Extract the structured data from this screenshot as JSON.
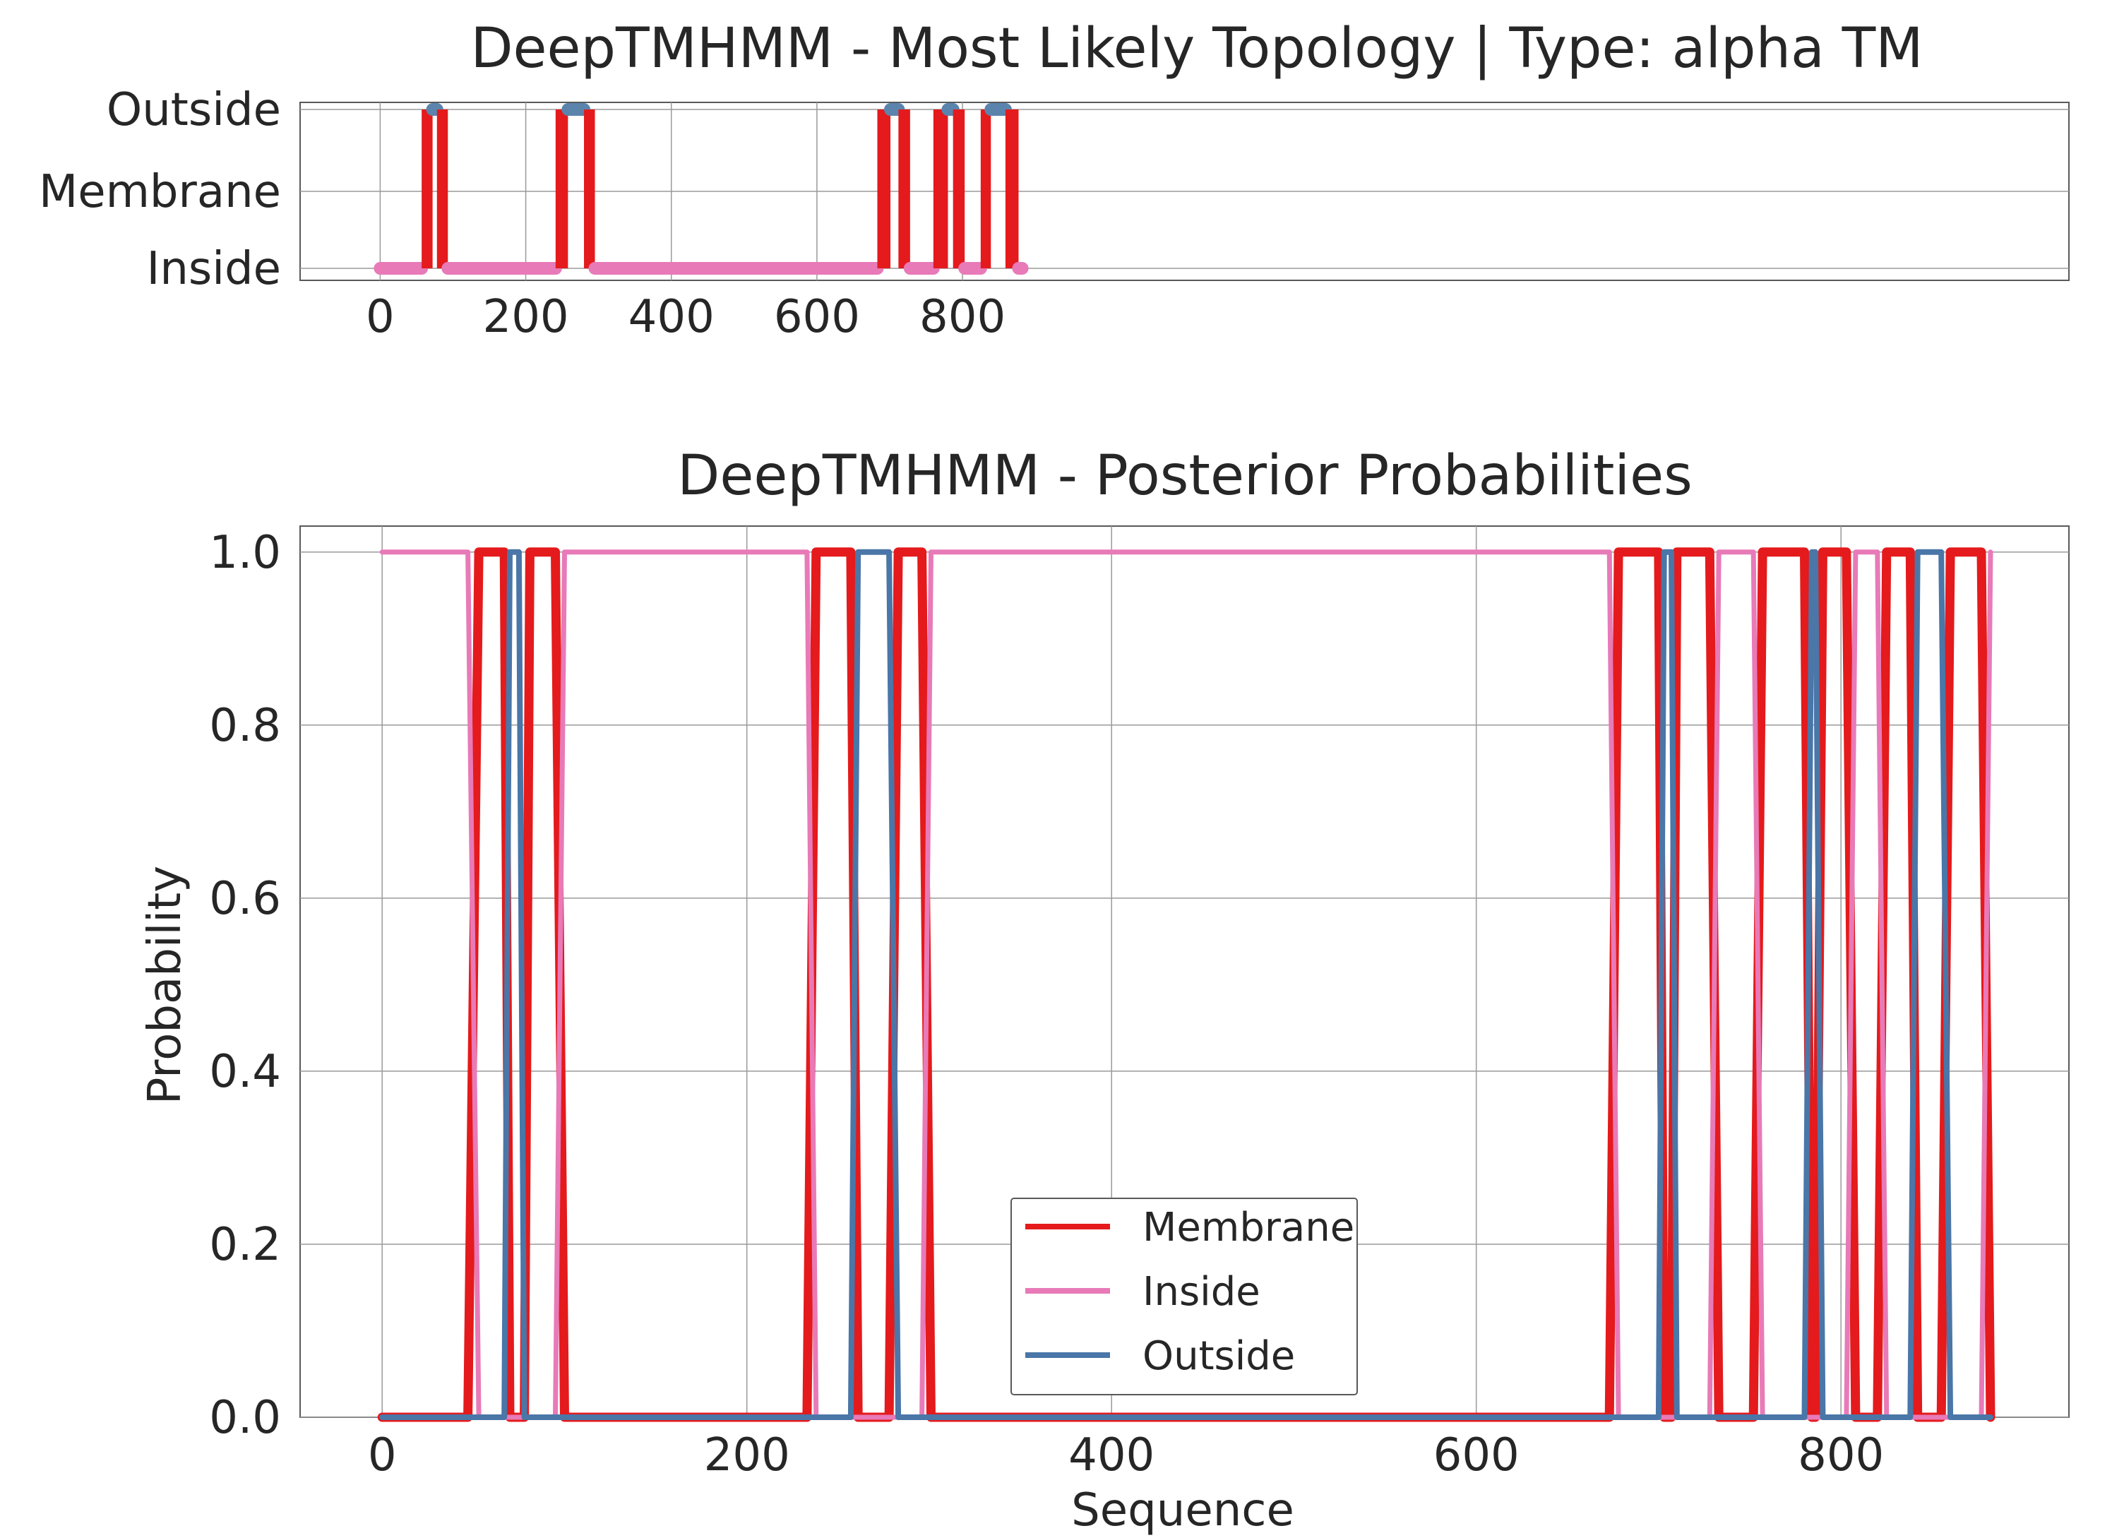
{
  "chart_data": [
    {
      "type": "line",
      "title": "DeepTMHMM - Most Likely Topology | Type: alpha TM",
      "xlim": [
        -110,
        2320
      ],
      "x_ticks": [
        0,
        200,
        400,
        600,
        800
      ],
      "y_tick_labels": [
        "Inside",
        "Membrane",
        "Outside"
      ],
      "grid": true,
      "colors": {
        "Membrane": "#e41a1c",
        "Inside": "#e87ab8",
        "Outside": "#5b84ad"
      },
      "segments": [
        {
          "state": "Inside",
          "start": 0,
          "end": 57
        },
        {
          "state": "Membrane",
          "start": 57,
          "end": 72
        },
        {
          "state": "Outside",
          "start": 72,
          "end": 78
        },
        {
          "state": "Membrane",
          "start": 78,
          "end": 93
        },
        {
          "state": "Inside",
          "start": 93,
          "end": 241
        },
        {
          "state": "Membrane",
          "start": 241,
          "end": 258
        },
        {
          "state": "Outside",
          "start": 258,
          "end": 280
        },
        {
          "state": "Membrane",
          "start": 280,
          "end": 295
        },
        {
          "state": "Inside",
          "start": 295,
          "end": 683
        },
        {
          "state": "Membrane",
          "start": 683,
          "end": 701
        },
        {
          "state": "Outside",
          "start": 701,
          "end": 712
        },
        {
          "state": "Membrane",
          "start": 712,
          "end": 728
        },
        {
          "state": "Inside",
          "start": 728,
          "end": 760
        },
        {
          "state": "Membrane",
          "start": 760,
          "end": 780
        },
        {
          "state": "Outside",
          "start": 780,
          "end": 787
        },
        {
          "state": "Membrane",
          "start": 787,
          "end": 803
        },
        {
          "state": "Inside",
          "start": 803,
          "end": 825
        },
        {
          "state": "Membrane",
          "start": 825,
          "end": 839
        },
        {
          "state": "Outside",
          "start": 839,
          "end": 859
        },
        {
          "state": "Membrane",
          "start": 859,
          "end": 877
        },
        {
          "state": "Inside",
          "start": 877,
          "end": 882
        }
      ]
    },
    {
      "type": "line",
      "title": "DeepTMHMM - Posterior Probabilities",
      "xlabel": "Sequence",
      "ylabel": "Probability",
      "xlim": [
        -45,
        925
      ],
      "ylim": [
        0,
        1.03
      ],
      "x_ticks": [
        0,
        200,
        400,
        600,
        800
      ],
      "y_ticks": [
        "0.0",
        "0.2",
        "0.4",
        "0.6",
        "0.8",
        "1.0"
      ],
      "grid": true,
      "legend": {
        "position": "lower center",
        "entries": [
          "Membrane",
          "Inside",
          "Outside"
        ]
      },
      "series": [
        {
          "name": "Membrane",
          "color": "#e41a1c",
          "x": [
            0,
            47,
            53,
            67,
            70,
            72,
            75,
            78,
            81,
            95,
            100,
            233,
            238,
            257,
            261,
            278,
            283,
            296,
            301,
            673,
            678,
            700,
            703,
            707,
            710,
            728,
            733,
            752,
            757,
            780,
            784,
            786,
            790,
            803,
            808,
            820,
            825,
            838,
            842,
            855,
            860,
            877,
            882
          ],
          "y": [
            0,
            0,
            1,
            1,
            0,
            0,
            0,
            0,
            1,
            1,
            0,
            0,
            1,
            1,
            0,
            0,
            1,
            1,
            0,
            0,
            1,
            1,
            0,
            0,
            1,
            1,
            0,
            0,
            1,
            1,
            0,
            0,
            1,
            1,
            0,
            0,
            1,
            1,
            0,
            0,
            1,
            1,
            0
          ]
        },
        {
          "name": "Inside",
          "color": "#e87ab8",
          "x": [
            0,
            47,
            53,
            67,
            70,
            72,
            75,
            78,
            81,
            95,
            100,
            233,
            238,
            257,
            261,
            278,
            283,
            296,
            301,
            673,
            678,
            700,
            703,
            707,
            710,
            728,
            733,
            752,
            757,
            780,
            784,
            786,
            790,
            803,
            808,
            820,
            825,
            838,
            842,
            855,
            860,
            877,
            882
          ],
          "y": [
            1,
            1,
            0,
            0,
            0,
            0,
            0,
            0,
            0,
            0,
            1,
            1,
            0,
            0,
            0,
            0,
            0,
            0,
            1,
            1,
            0,
            0,
            0,
            0,
            0,
            0,
            1,
            1,
            0,
            0,
            0,
            0,
            0,
            0,
            1,
            1,
            0,
            0,
            0,
            0,
            0,
            0,
            1
          ]
        },
        {
          "name": "Outside",
          "color": "#4a76a8",
          "x": [
            0,
            47,
            53,
            67,
            70,
            72,
            75,
            78,
            81,
            95,
            100,
            233,
            238,
            257,
            261,
            278,
            283,
            296,
            301,
            673,
            678,
            700,
            703,
            707,
            710,
            728,
            733,
            752,
            757,
            780,
            784,
            786,
            790,
            803,
            808,
            820,
            825,
            838,
            842,
            855,
            860,
            877,
            882
          ],
          "y": [
            0,
            0,
            0,
            0,
            1,
            1,
            1,
            0,
            0,
            0,
            0,
            0,
            0,
            0,
            1,
            1,
            0,
            0,
            0,
            0,
            0,
            0,
            1,
            1,
            0,
            0,
            0,
            0,
            0,
            0,
            1,
            1,
            0,
            0,
            0,
            0,
            0,
            0,
            1,
            1,
            0,
            0,
            0
          ]
        }
      ]
    }
  ]
}
